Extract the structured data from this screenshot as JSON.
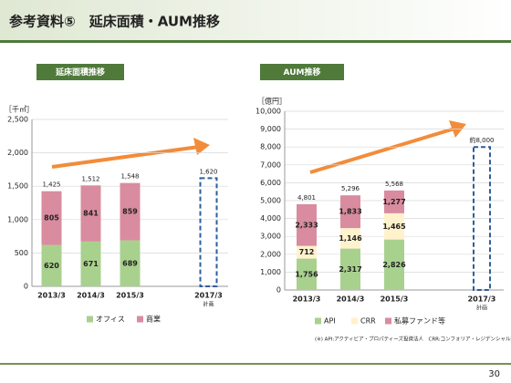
{
  "header": {
    "title": "参考資料⑤　延床面積・AUM推移"
  },
  "chart_data": [
    {
      "type": "bar",
      "stacked": true,
      "title": "延床面積推移",
      "unit_label": "［千㎡］",
      "categories": [
        "2013/3",
        "2014/3",
        "2015/3",
        null,
        "2017/3"
      ],
      "category_notes": [
        null,
        null,
        null,
        null,
        "計画"
      ],
      "series": [
        {
          "name": "オフィス",
          "color": "#a9d18e",
          "values": [
            620,
            671,
            689,
            null,
            null
          ]
        },
        {
          "name": "商業",
          "color": "#d98c9f",
          "values": [
            805,
            841,
            859,
            null,
            null
          ]
        }
      ],
      "totals": {
        "values": [
          1425,
          1512,
          1548,
          null,
          1620
        ],
        "value_labels": [
          "1,425",
          "1,512",
          "1,548",
          null,
          "1,620"
        ]
      },
      "plan_color": "#2e5e9e",
      "ylim": [
        0,
        2500
      ],
      "yticks": [
        0,
        500,
        {
          "value": 1000,
          "label": "1,000"
        },
        {
          "value": 1500,
          "label": "1,500"
        },
        {
          "value": 2000,
          "label": "2,000"
        },
        {
          "value": 2500,
          "label": "2,500"
        }
      ],
      "grid": true
    },
    {
      "type": "bar",
      "stacked": true,
      "title": "AUM推移",
      "unit_label": "［億円］",
      "categories": [
        "2013/3",
        "2014/3",
        "2015/3",
        null,
        "2017/3"
      ],
      "category_notes": [
        null,
        null,
        null,
        null,
        "計画"
      ],
      "series": [
        {
          "name": "API",
          "color": "#a9d18e",
          "values": [
            1756,
            2317,
            2826,
            null,
            null
          ],
          "value_labels": [
            "1,756",
            "2,317",
            "2,826",
            null,
            null
          ]
        },
        {
          "name": "CRR",
          "color": "#fff2cc",
          "values": [
            712,
            1146,
            1465,
            null,
            null
          ],
          "value_labels": [
            "712",
            "1,146",
            "1,465",
            null,
            null
          ]
        },
        {
          "name": "私募ファンド等",
          "color": "#d98c9f",
          "values": [
            2333,
            1833,
            1277,
            null,
            null
          ],
          "value_labels": [
            "2,333",
            "1,833",
            "1,277",
            null,
            null
          ]
        }
      ],
      "totals": {
        "values": [
          4801,
          5296,
          5568,
          null,
          8000
        ],
        "value_labels": [
          "4,801",
          "5,296",
          "5,568",
          null,
          "約8,000"
        ]
      },
      "plan_color": "#2e5e9e",
      "ylim": [
        0,
        10000
      ],
      "yticks": [
        0,
        {
          "value": 1000,
          "label": "1,000"
        },
        {
          "value": 2000,
          "label": "2,000"
        },
        {
          "value": 3000,
          "label": "3,000"
        },
        {
          "value": 4000,
          "label": "4,000"
        },
        {
          "value": 5000,
          "label": "5,000"
        },
        {
          "value": 6000,
          "label": "6,000"
        },
        {
          "value": 7000,
          "label": "7,000"
        },
        {
          "value": 8000,
          "label": "8,000"
        },
        {
          "value": 9000,
          "label": "9,000"
        },
        {
          "value": 10000,
          "label": "10,000"
        }
      ],
      "grid": true
    }
  ],
  "footnote": "(※) API:アクティビア・プロパティーズ投資法人　CRR:コンフォリア・レジデンシャル投資法人",
  "page_number": 30
}
